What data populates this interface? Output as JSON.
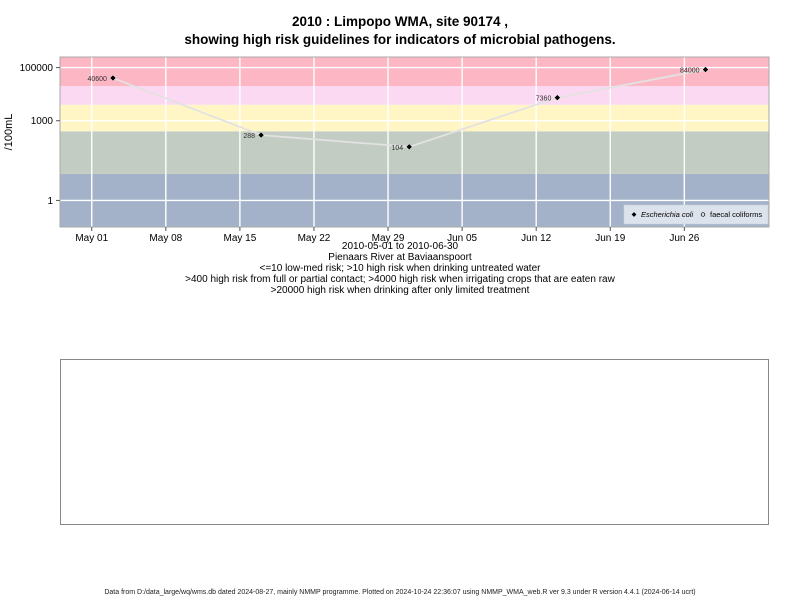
{
  "titles": {
    "line1": "2010 : Limpopo WMA, site 90174 ,",
    "line2": "showing high risk guidelines for indicators of microbial pathogens."
  },
  "chart_data": {
    "type": "line",
    "ylabel": "/100mL",
    "yscale": "log",
    "ylim": [
      0.1,
      250000
    ],
    "y_ticks": [
      {
        "value": 1,
        "label": "1"
      },
      {
        "value": 1000,
        "label": "1000"
      },
      {
        "value": 100000,
        "label": "100000"
      }
    ],
    "xlim": [
      "2010-04-28",
      "2010-07-04"
    ],
    "x_ticks": [
      {
        "date": "2010-05-01",
        "label": "May 01"
      },
      {
        "date": "2010-05-08",
        "label": "May 08"
      },
      {
        "date": "2010-05-15",
        "label": "May 15"
      },
      {
        "date": "2010-05-22",
        "label": "May 22"
      },
      {
        "date": "2010-05-29",
        "label": "May 29"
      },
      {
        "date": "2010-06-05",
        "label": "Jun 05"
      },
      {
        "date": "2010-06-12",
        "label": "Jun 12"
      },
      {
        "date": "2010-06-19",
        "label": "Jun 19"
      },
      {
        "date": "2010-06-26",
        "label": "Jun 26"
      }
    ],
    "grid": true,
    "risk_bands": [
      {
        "from": 0.1,
        "to": 10,
        "color": "#a3b2c9"
      },
      {
        "from": 10,
        "to": 400,
        "color": "#c2ccc2"
      },
      {
        "from": 400,
        "to": 4000,
        "color": "#fff5c5"
      },
      {
        "from": 4000,
        "to": 20000,
        "color": "#fbd9f3"
      },
      {
        "from": 20000,
        "to": 250000,
        "color": "#fcb6c4"
      }
    ],
    "series": [
      {
        "name": "Escherichia coli",
        "marker": "diamond",
        "color": "#000000",
        "line_color": "#e2e2e2",
        "points": [
          {
            "date": "2010-05-03",
            "value": 40600,
            "label": "40600"
          },
          {
            "date": "2010-05-17",
            "value": 288,
            "label": "288"
          },
          {
            "date": "2010-05-31",
            "value": 104,
            "label": "104"
          },
          {
            "date": "2010-06-14",
            "value": 7360,
            "label": "7360"
          },
          {
            "date": "2010-06-28",
            "value": 84000,
            "label": "84000"
          }
        ]
      },
      {
        "name": "faecal coliforms",
        "marker": "circle",
        "color": "#000000",
        "points": []
      }
    ],
    "legend_position": "bottom-right"
  },
  "notes": {
    "date_range": "2010-05-01 to 2010-06-30",
    "site_name": "Pienaars River at Baviaanspoort",
    "rule1": "<=10 low-med risk; >10 high risk when drinking untreated water",
    "rule2": ">400 high risk from full or partial contact; >4000 high risk when irrigating crops that are eaten raw",
    "rule3": ">20000 high risk when drinking after only limited treatment"
  },
  "footer": "Data from D:/data_large/wq/wms.db dated 2024-08-27, mainly NMMP programme. Plotted on 2024-10-24 22:36:07 using NMMP_WMA_web.R ver 9.3 under R version 4.4.1 (2024-06-14 ucrt)"
}
